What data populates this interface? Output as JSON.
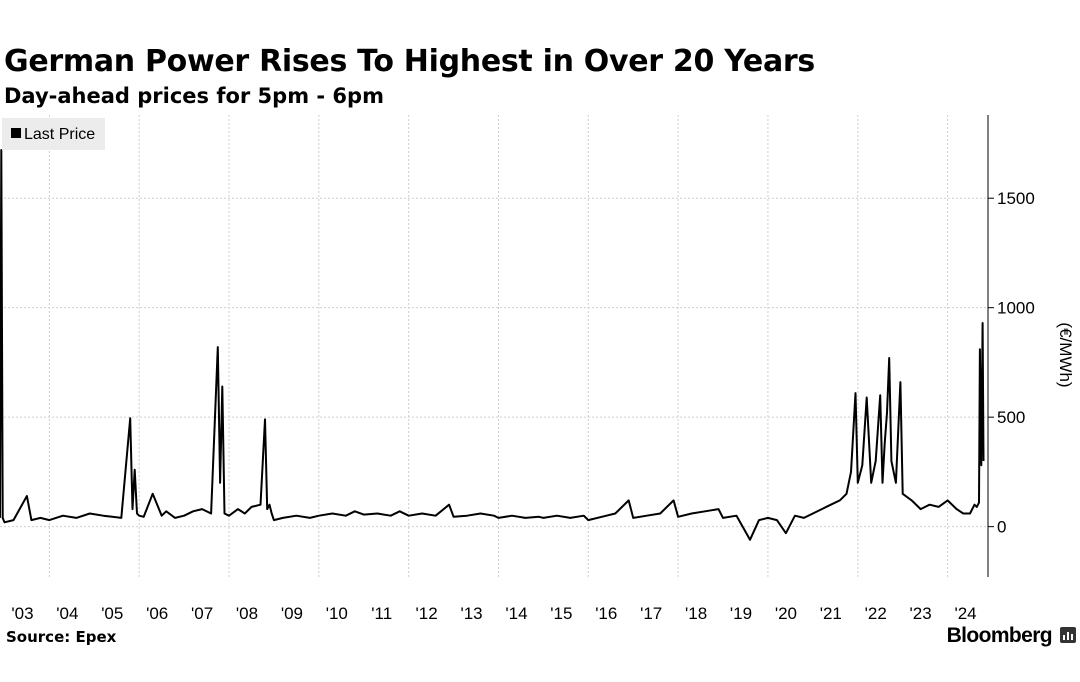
{
  "title": "German Power Rises To Highest in Over 20 Years",
  "subtitle": "Day-ahead prices for 5pm - 6pm",
  "source": "Source: Epex",
  "brand": "Bloomberg",
  "brand_icon": "bloomberg-terminal-icon",
  "chart_data": {
    "type": "line",
    "xlabel": "",
    "ylabel": "(€/MWh)",
    "yticks": [
      0,
      500,
      1000,
      1500
    ],
    "ylim": [
      -230,
      1880
    ],
    "xlim": [
      2002.9,
      2024.9
    ],
    "xtick_labels": [
      "'03",
      "'04",
      "'05",
      "'06",
      "'07",
      "'08",
      "'09",
      "'10",
      "'11",
      "'12",
      "'13",
      "'14",
      "'15",
      "'16",
      "'17",
      "'18",
      "'19",
      "'20",
      "'21",
      "'22",
      "'23",
      "'24"
    ],
    "grid": true,
    "legend": "top-left",
    "color": "#000000",
    "series": [
      {
        "name": "Last Price",
        "x": [
          2002.9,
          2002.93,
          2002.96,
          2003.0,
          2003.2,
          2003.5,
          2003.6,
          2003.8,
          2004.0,
          2004.3,
          2004.6,
          2004.9,
          2005.2,
          2005.4,
          2005.6,
          2005.8,
          2005.85,
          2005.9,
          2005.95,
          2006.0,
          2006.1,
          2006.3,
          2006.5,
          2006.6,
          2006.8,
          2007.0,
          2007.2,
          2007.4,
          2007.6,
          2007.75,
          2007.8,
          2007.85,
          2007.9,
          2008.0,
          2008.2,
          2008.35,
          2008.5,
          2008.7,
          2008.8,
          2008.85,
          2008.9,
          2008.95,
          2009.0,
          2009.2,
          2009.5,
          2009.8,
          2010.0,
          2010.3,
          2010.6,
          2010.8,
          2011.0,
          2011.3,
          2011.6,
          2011.8,
          2012.0,
          2012.3,
          2012.6,
          2012.9,
          2013.0,
          2013.3,
          2013.6,
          2013.9,
          2014.0,
          2014.3,
          2014.6,
          2014.9,
          2015.0,
          2015.3,
          2015.6,
          2015.9,
          2016.0,
          2016.3,
          2016.6,
          2016.9,
          2017.0,
          2017.3,
          2017.6,
          2017.9,
          2018.0,
          2018.3,
          2018.6,
          2018.9,
          2019.0,
          2019.3,
          2019.6,
          2019.8,
          2020.0,
          2020.2,
          2020.4,
          2020.6,
          2020.8,
          2021.0,
          2021.2,
          2021.4,
          2021.6,
          2021.75,
          2021.85,
          2021.95,
          2022.0,
          2022.1,
          2022.2,
          2022.3,
          2022.4,
          2022.5,
          2022.55,
          2022.6,
          2022.65,
          2022.7,
          2022.75,
          2022.85,
          2022.95,
          2023.0,
          2023.2,
          2023.4,
          2023.6,
          2023.8,
          2024.0,
          2024.2,
          2024.35,
          2024.5,
          2024.6,
          2024.65,
          2024.7,
          2024.72,
          2024.75,
          2024.78,
          2024.8
        ],
        "values": [
          40,
          1720,
          40,
          20,
          30,
          140,
          30,
          40,
          30,
          50,
          40,
          60,
          50,
          45,
          40,
          495,
          80,
          260,
          60,
          50,
          45,
          150,
          50,
          70,
          40,
          50,
          70,
          80,
          60,
          820,
          200,
          640,
          60,
          50,
          80,
          60,
          90,
          100,
          490,
          80,
          100,
          60,
          30,
          40,
          50,
          40,
          50,
          60,
          50,
          70,
          55,
          60,
          50,
          70,
          50,
          60,
          50,
          100,
          45,
          50,
          60,
          50,
          40,
          50,
          40,
          45,
          40,
          50,
          40,
          50,
          30,
          45,
          60,
          120,
          40,
          50,
          60,
          120,
          45,
          60,
          70,
          80,
          40,
          50,
          -60,
          30,
          40,
          30,
          -30,
          50,
          40,
          60,
          80,
          100,
          120,
          150,
          250,
          610,
          200,
          280,
          590,
          200,
          300,
          600,
          200,
          380,
          520,
          770,
          300,
          200,
          660,
          150,
          120,
          80,
          100,
          90,
          120,
          80,
          60,
          60,
          100,
          90,
          110,
          810,
          280,
          930,
          300
        ]
      }
    ]
  }
}
